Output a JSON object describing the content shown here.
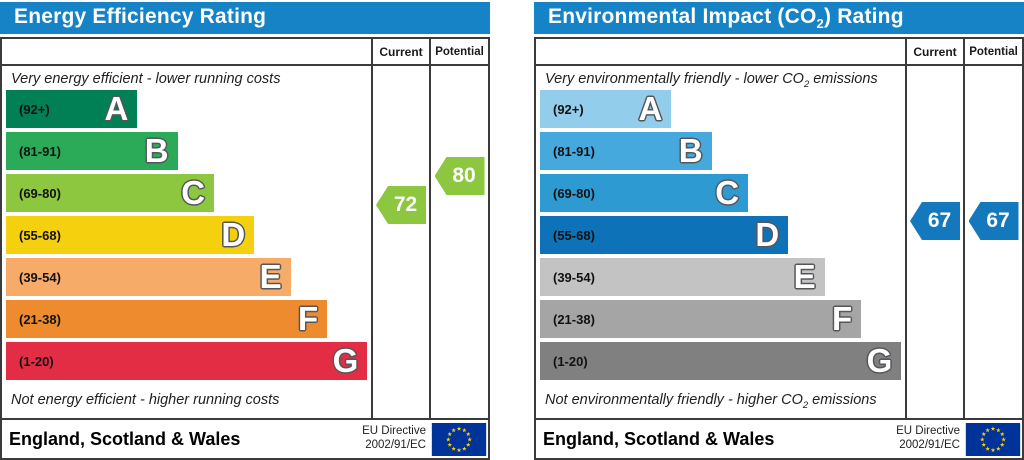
{
  "chart_data": [
    {
      "type": "bar",
      "title": "Energy Efficiency Rating",
      "categories": [
        "A (92+)",
        "B (81-91)",
        "C (69-80)",
        "D (55-68)",
        "E (39-54)",
        "F (21-38)",
        "G (1-20)"
      ],
      "values": [
        36,
        47,
        57,
        68,
        78,
        88,
        99
      ],
      "values_note": "relative bar widths in % of scale area",
      "current": 72,
      "potential": 80,
      "xlabel": "",
      "ylabel": "",
      "legend": [
        "Current",
        "Potential"
      ],
      "top_caption": "Very energy efficient - lower running costs",
      "bottom_caption": "Not energy efficient - higher running costs",
      "region": "England, Scotland & Wales",
      "directive": "EU Directive 2002/91/EC"
    },
    {
      "type": "bar",
      "title": "Environmental Impact (CO2) Rating",
      "categories": [
        "A (92+)",
        "B (81-91)",
        "C (69-80)",
        "D (55-68)",
        "E (39-54)",
        "F (21-38)",
        "G (1-20)"
      ],
      "values": [
        36,
        47,
        57,
        68,
        78,
        88,
        99
      ],
      "values_note": "relative bar widths in % of scale area",
      "current": 67,
      "potential": 67,
      "xlabel": "",
      "ylabel": "",
      "legend": [
        "Current",
        "Potential"
      ],
      "top_caption": "Very environmentally friendly - lower CO2 emissions",
      "bottom_caption": "Not environmentally friendly - higher CO2 emissions",
      "region": "England, Scotland & Wales",
      "directive": "EU Directive 2002/91/EC"
    }
  ],
  "panels": [
    {
      "title_pre": "Energy Efficiency Rating",
      "title_sub": "",
      "title_post": "",
      "col_current": "Current",
      "col_potential": "Potential",
      "top_note_pre": "Very energy efficient - lower running costs",
      "top_note_sub": "",
      "top_note_post": "",
      "bottom_note_pre": "Not energy efficient - higher running costs",
      "bottom_note_sub": "",
      "bottom_note_post": "",
      "bands": [
        {
          "letter": "A",
          "range": "(92+)",
          "color": "#008054",
          "width": "36%"
        },
        {
          "letter": "B",
          "range": "(81-91)",
          "color": "#2bab58",
          "width": "47%"
        },
        {
          "letter": "C",
          "range": "(69-80)",
          "color": "#8dc63f",
          "width": "57%"
        },
        {
          "letter": "D",
          "range": "(55-68)",
          "color": "#f4d00f",
          "width": "68%"
        },
        {
          "letter": "E",
          "range": "(39-54)",
          "color": "#f7ab68",
          "width": "78%"
        },
        {
          "letter": "F",
          "range": "(21-38)",
          "color": "#ee8b2e",
          "width": "88%"
        },
        {
          "letter": "G",
          "range": "(1-20)",
          "color": "#e32d45",
          "width": "99%"
        }
      ],
      "current_value": "72",
      "current_color": "#8dc63f",
      "potential_value": "80",
      "potential_color": "#8dc63f",
      "footer_region": "England, Scotland & Wales",
      "directive_line1": "EU Directive",
      "directive_line2": "2002/91/EC",
      "eu_flag_color": "#003399",
      "eu_star_color": "#ffcc00"
    },
    {
      "title_pre": "Environmental Impact (CO",
      "title_sub": "2",
      "title_post": ") Rating",
      "col_current": "Current",
      "col_potential": "Potential",
      "top_note_pre": "Very environmentally friendly - lower CO",
      "top_note_sub": "2",
      "top_note_post": " emissions",
      "bottom_note_pre": "Not environmentally friendly - higher CO",
      "bottom_note_sub": "2",
      "bottom_note_post": " emissions",
      "bands": [
        {
          "letter": "A",
          "range": "(92+)",
          "color": "#93cdec",
          "width": "36%"
        },
        {
          "letter": "B",
          "range": "(81-91)",
          "color": "#45a9dd",
          "width": "47%"
        },
        {
          "letter": "C",
          "range": "(69-80)",
          "color": "#2d9ad2",
          "width": "57%"
        },
        {
          "letter": "D",
          "range": "(55-68)",
          "color": "#0e72b8",
          "width": "68%"
        },
        {
          "letter": "E",
          "range": "(39-54)",
          "color": "#c3c3c3",
          "width": "78%"
        },
        {
          "letter": "F",
          "range": "(21-38)",
          "color": "#a5a5a5",
          "width": "88%"
        },
        {
          "letter": "G",
          "range": "(1-20)",
          "color": "#808080",
          "width": "99%"
        }
      ],
      "current_value": "67",
      "current_color": "#1478bd",
      "potential_value": "67",
      "potential_color": "#1478bd",
      "footer_region": "England, Scotland & Wales",
      "directive_line1": "EU Directive",
      "directive_line2": "2002/91/EC",
      "eu_flag_color": "#003399",
      "eu_star_color": "#ffcc00"
    }
  ]
}
